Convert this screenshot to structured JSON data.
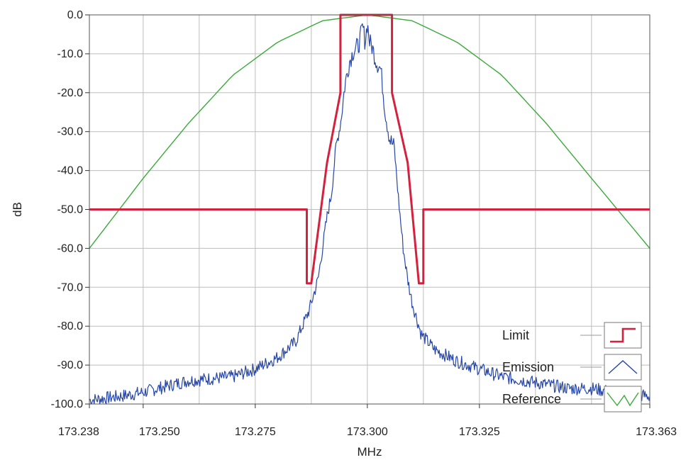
{
  "chart_data": {
    "type": "line",
    "title": "",
    "xlabel": "MHz",
    "ylabel": "dB",
    "xlim": [
      173.238,
      173.363
    ],
    "ylim": [
      -100,
      0
    ],
    "grid": true,
    "x_ticks": [
      {
        "value": 173.238,
        "label": "173.238"
      },
      {
        "value": 173.25,
        "label": "173.250"
      },
      {
        "value": 173.275,
        "label": "173.275"
      },
      {
        "value": 173.3,
        "label": "173.300"
      },
      {
        "value": 173.325,
        "label": "173.325"
      },
      {
        "value": 173.363,
        "label": "173.363"
      }
    ],
    "x_gridlines": [
      173.25,
      173.2625,
      173.275,
      173.2875,
      173.3,
      173.3125,
      173.325,
      173.3375,
      173.35
    ],
    "y_ticks": [
      {
        "value": 0,
        "label": "0.0"
      },
      {
        "value": -10,
        "label": "-10.0"
      },
      {
        "value": -20,
        "label": "-20.0"
      },
      {
        "value": -30,
        "label": "-30.0"
      },
      {
        "value": -40,
        "label": "-40.0"
      },
      {
        "value": -50,
        "label": "-50.0"
      },
      {
        "value": -60,
        "label": "-60.0"
      },
      {
        "value": -70,
        "label": "-70.0"
      },
      {
        "value": -80,
        "label": "-80.0"
      },
      {
        "value": -90,
        "label": "-90.0"
      },
      {
        "value": -100,
        "label": "-100.0"
      }
    ],
    "legend_position": "bottom-right",
    "series": [
      {
        "name": "Limit",
        "color": "#d4213d",
        "style": "step",
        "x": [
          173.238,
          173.2865,
          173.2865,
          173.2875,
          173.291,
          173.294,
          173.294,
          173.3055,
          173.3055,
          173.309,
          173.3115,
          173.3125,
          173.3125,
          173.363
        ],
        "y": [
          -50,
          -50,
          -69,
          -69,
          -38,
          -20,
          0,
          0,
          -20,
          -38,
          -69,
          -69,
          -50,
          -50
        ]
      },
      {
        "name": "Emission",
        "color": "#2747a8",
        "style": "noisy",
        "x": [
          173.238,
          173.245,
          173.25,
          173.26,
          173.27,
          173.275,
          173.28,
          173.284,
          173.287,
          173.289,
          173.291,
          173.292,
          173.293,
          173.294,
          173.295,
          173.296,
          173.297,
          173.298,
          173.299,
          173.2995,
          173.3,
          173.3005,
          173.301,
          173.302,
          173.303,
          173.304,
          173.305,
          173.306,
          173.307,
          173.308,
          173.309,
          173.31,
          173.311,
          173.312,
          173.315,
          173.32,
          173.325,
          173.33,
          173.335,
          173.34,
          173.345,
          173.35,
          173.355,
          173.363
        ],
        "y": [
          -99,
          -98,
          -97,
          -94,
          -93,
          -91,
          -88,
          -84,
          -76,
          -68,
          -52,
          -46,
          -34,
          -28,
          -18,
          -12,
          -9,
          -8,
          -3,
          -7,
          -2,
          -7,
          -8,
          -12,
          -14,
          -25,
          -32,
          -34,
          -48,
          -60,
          -68,
          -74,
          -78,
          -82,
          -86,
          -89,
          -91,
          -93,
          -94,
          -95,
          -96,
          -96,
          -97,
          -98
        ]
      },
      {
        "name": "Reference",
        "color": "#3aaa3a",
        "style": "curve",
        "x": [
          173.238,
          173.25,
          173.26,
          173.27,
          173.28,
          173.29,
          173.3,
          173.31,
          173.32,
          173.33,
          173.34,
          173.35,
          173.363
        ],
        "y": [
          -60,
          -42,
          -28,
          -15.5,
          -7,
          -1.5,
          0,
          -1.5,
          -7,
          -15.5,
          -28,
          -42,
          -60
        ]
      }
    ]
  }
}
